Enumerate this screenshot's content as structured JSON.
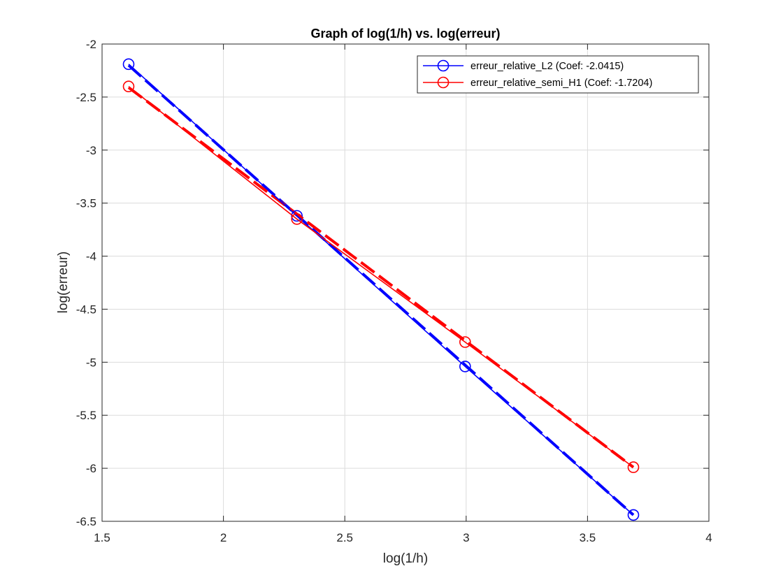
{
  "chart_data": {
    "type": "line",
    "title": "Graph of log(1/h) vs. log(erreur)",
    "xlabel": "log(1/h)",
    "ylabel": "log(erreur)",
    "xlim": [
      1.5,
      4
    ],
    "ylim": [
      -6.5,
      -2
    ],
    "xticks": [
      "1.5",
      "2",
      "2.5",
      "3",
      "3.5",
      "4"
    ],
    "yticks": [
      "-6.5",
      "-6",
      "-5.5",
      "-5",
      "-4.5",
      "-4",
      "-3.5",
      "-3",
      "-2.5",
      "-2"
    ],
    "grid": true,
    "legend_position": "top-right",
    "series": [
      {
        "name": "erreur_relative_L2 (Coef: -2.0415)",
        "color": "#0000ff",
        "marker": "circle",
        "x": [
          1.6094,
          2.3026,
          2.9957,
          3.6889
        ],
        "y": [
          -2.19,
          -3.62,
          -5.04,
          -6.44
        ]
      },
      {
        "name": "erreur_relative_semi_H1 (Coef: -1.7204)",
        "color": "#ff0000",
        "marker": "circle",
        "x": [
          1.6094,
          2.3026,
          2.9957,
          3.6889
        ],
        "y": [
          -2.4,
          -3.65,
          -4.81,
          -5.99
        ]
      }
    ],
    "fits": [
      {
        "color": "#0000ff",
        "style": "dashed",
        "x": [
          1.6094,
          3.6889
        ],
        "y": [
          -2.2,
          -6.44
        ]
      },
      {
        "color": "#ff0000",
        "style": "dashed",
        "x": [
          1.6094,
          3.6889
        ],
        "y": [
          -2.41,
          -5.99
        ]
      }
    ]
  }
}
